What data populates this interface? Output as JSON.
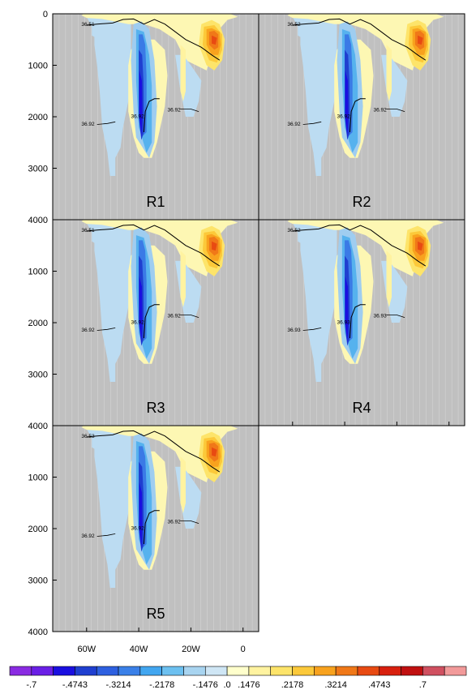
{
  "chart_data": {
    "type": "heatmap",
    "description_of_panels": [
      "R1",
      "R2",
      "R3",
      "R4",
      "R5"
    ],
    "y_axis": {
      "ticks": [
        "0",
        "1000",
        "2000",
        "3000",
        "4000"
      ],
      "range": [
        0,
        4000
      ],
      "inverted": true
    },
    "x_axis": {
      "ticks": [
        "60W",
        "40W",
        "20W",
        "0"
      ],
      "range": [
        -73,
        6
      ]
    },
    "panels": [
      {
        "label": "R1",
        "contour_labels": [
          "36.51",
          "36.92",
          "36.92",
          "36.92"
        ]
      },
      {
        "label": "R2",
        "contour_labels": [
          "36.52",
          "36.92",
          "36.92",
          "36.92"
        ]
      },
      {
        "label": "R3",
        "contour_labels": [
          "36.51",
          "36.92",
          "36.92",
          "36.92"
        ]
      },
      {
        "label": "R4",
        "contour_labels": [
          "36.52",
          "36.93",
          "36.93",
          "36.93"
        ]
      },
      {
        "label": "R5",
        "contour_labels": [
          "36.53",
          "36.92",
          "36.92",
          "36.92"
        ]
      }
    ],
    "colorbar": {
      "labels": [
        "-.7",
        "-.4743",
        "-.3214",
        "-.2178",
        "-.1476",
        ".0",
        ".1476",
        ".2178",
        ".3214",
        ".4743",
        ".7"
      ],
      "colors": [
        "#8a2be2",
        "#6a1fe6",
        "#1a0fe0",
        "#1f3fd0",
        "#2e60e0",
        "#3a80e8",
        "#42a6f0",
        "#6cc0f0",
        "#a8d4f0",
        "#cfe6f5",
        "#ffffcc",
        "#fff3a0",
        "#fde46a",
        "#fcc93a",
        "#f8a21e",
        "#f07818",
        "#e84a12",
        "#d8200e",
        "#c01010",
        "#d05060",
        "#f29a9a"
      ]
    },
    "colors": {
      "land": "#c0c0c0",
      "grid": "#d8d8d8",
      "light_blue": "#bcdcf2",
      "yellow": "#fdf7b3"
    }
  }
}
